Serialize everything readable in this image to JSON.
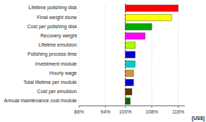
{
  "chart_data": {
    "type": "bar",
    "orientation": "horizontal",
    "xlabel": "[US$]",
    "categories": [
      "Lifetime polishing disk",
      "Final weight stone",
      "Cost per polishing disk",
      "Recovery weight",
      "Lifetime emulsion",
      "Polishing process time",
      "Investment module",
      "Hourly wage",
      "Total lifetime per module",
      "Cost per emulsion",
      "Annual maintenance cost module"
    ],
    "starts": [
      100,
      100,
      100,
      100,
      100,
      100,
      100,
      100,
      100,
      100,
      100
    ],
    "values": [
      116,
      114,
      108,
      106,
      103,
      103,
      103,
      102.5,
      102.5,
      102,
      101.5
    ],
    "colors": [
      "#ff0000",
      "#ffff00",
      "#00aa00",
      "#ff00ff",
      "#aaff00",
      "#0000cc",
      "#00cccc",
      "#cc9933",
      "#0000cc",
      "#663300",
      "#006600"
    ],
    "xlim": [
      86,
      118
    ],
    "xticks": [
      {
        "value": 86,
        "label": "86%"
      },
      {
        "value": 94,
        "label": "94%"
      },
      {
        "value": 100,
        "label": "100%"
      },
      {
        "value": 108,
        "label": "108%"
      },
      {
        "value": 116,
        "label": "116%"
      }
    ],
    "vline": {
      "value": 100,
      "color": "#ff0000"
    },
    "grid": true
  }
}
